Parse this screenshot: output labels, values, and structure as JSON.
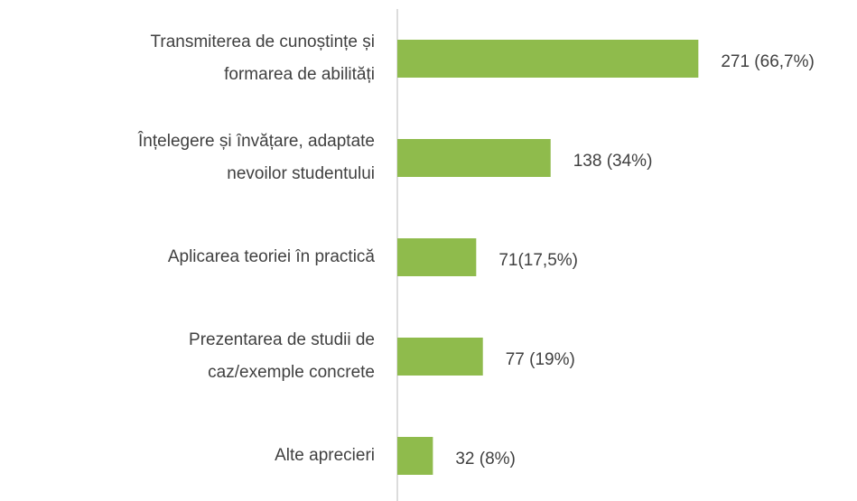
{
  "chart_data": {
    "type": "bar",
    "orientation": "horizontal",
    "categories": [
      [
        "Transmiterea de cunoștințe și",
        "formarea de abilități"
      ],
      [
        "Înțelegere și învățare, adaptate",
        "nevoilor studentului"
      ],
      [
        "Aplicarea teoriei în practică"
      ],
      [
        "Prezentarea de studii de",
        "caz/exemple concrete"
      ],
      [
        "Alte aprecieri"
      ]
    ],
    "values": [
      271,
      138,
      71,
      77,
      32
    ],
    "value_labels": [
      "271 (66,7%)",
      "138 (34%)",
      "71(17,5%)",
      "77 (19%)",
      "32 (8%)"
    ],
    "color": "#8fbb4c",
    "xlim": [
      0,
      300
    ]
  }
}
